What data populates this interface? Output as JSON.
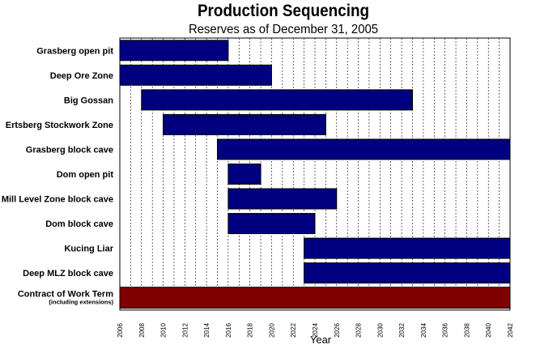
{
  "chart_data": {
    "type": "gantt",
    "title": "Production Sequencing",
    "subtitle": "Reserves as of December 31, 2005",
    "xlabel": "Year",
    "xlim": [
      2006,
      2042
    ],
    "xticks": [
      "2006",
      "2008",
      "2010",
      "2012",
      "2014",
      "2016",
      "2018",
      "2020",
      "2022",
      "2024",
      "2026",
      "2028",
      "2030",
      "2032",
      "2034",
      "2036",
      "2038",
      "2040",
      "2042"
    ],
    "grid": "vertical dashed, yearly",
    "tasks": [
      {
        "label": "Grasberg open pit",
        "start": 2006,
        "end": 2016,
        "color": "#000080"
      },
      {
        "label": "Deep Ore Zone",
        "start": 2006,
        "end": 2020,
        "color": "#000080"
      },
      {
        "label": "Big Gossan",
        "start": 2008,
        "end": 2033,
        "color": "#000080"
      },
      {
        "label": "Ertsberg Stockwork Zone",
        "start": 2010,
        "end": 2025,
        "color": "#000080"
      },
      {
        "label": "Grasberg block cave",
        "start": 2015,
        "end": 2042,
        "color": "#000080"
      },
      {
        "label": "Dom open pit",
        "start": 2016,
        "end": 2019,
        "color": "#000080"
      },
      {
        "label": "Mill Level Zone block cave",
        "start": 2016,
        "end": 2026,
        "color": "#000080"
      },
      {
        "label": "Dom block cave",
        "start": 2016,
        "end": 2024,
        "color": "#000080"
      },
      {
        "label": "Kucing Liar",
        "start": 2023,
        "end": 2042,
        "color": "#000080"
      },
      {
        "label": "Deep MLZ block cave",
        "start": 2023,
        "end": 2042,
        "color": "#000080"
      },
      {
        "label": "Contract of Work Term",
        "sublabel": "(including extensions)",
        "start": 2006,
        "end": 2042,
        "color": "#800000"
      }
    ]
  }
}
